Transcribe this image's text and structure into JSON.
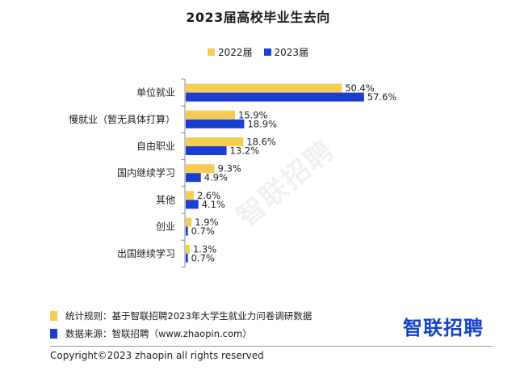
{
  "title": "2023届高校毕业生去向",
  "legend": [
    "2022届",
    "2023届"
  ],
  "colors": {
    "series_2022": "#F5CD55",
    "series_2023": "#1A3FD0"
  },
  "chart_data": {
    "type": "bar",
    "orientation": "horizontal",
    "categories": [
      "单位就业",
      "慢就业（暂无具体打算）",
      "自由职业",
      "国内继续学习",
      "其他",
      "创业",
      "出国继续学习"
    ],
    "series": [
      {
        "name": "2022届",
        "values": [
          50.4,
          15.9,
          18.6,
          9.3,
          2.6,
          1.9,
          1.3
        ],
        "labels": [
          "50.4%",
          "15.9%",
          "18.6%",
          "9.3%",
          "2.6%",
          "1.9%",
          "1.3%"
        ]
      },
      {
        "name": "2023届",
        "values": [
          57.6,
          18.9,
          13.2,
          4.9,
          4.1,
          0.7,
          0.7
        ],
        "labels": [
          "57.6%",
          "18.9%",
          "13.2%",
          "4.9%",
          "4.1%",
          "0.7%",
          "0.7%"
        ]
      }
    ],
    "xlim": [
      0,
      60
    ],
    "grid": false,
    "legend_position": "top-center"
  },
  "watermark": "智联招聘",
  "footnotes": {
    "rule": "统计规则：基于智联招聘2023年大学生就业力问卷调研数据",
    "source": "数据来源：智联招聘（www.zhaopin.com）"
  },
  "logo": "智联招聘",
  "copyright": "Copyright©2023 zhaopin all rights reserved"
}
